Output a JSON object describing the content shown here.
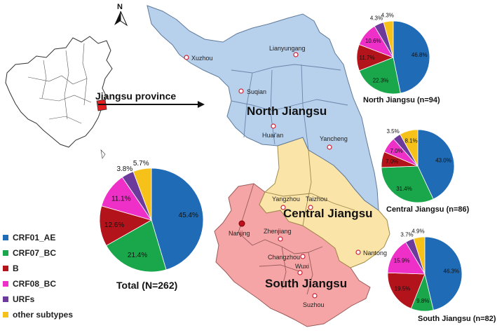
{
  "map": {
    "north_label": "N",
    "province_label": "Jiangsu province",
    "regions": [
      {
        "name": "North Jiangsu",
        "color": "#b7d0ec"
      },
      {
        "name": "Central Jiangsu",
        "color": "#fbe4a8"
      },
      {
        "name": "South Jiangsu",
        "color": "#f5a5a5"
      }
    ],
    "cities": [
      "Xuzhou",
      "Lianyungang",
      "Suqian",
      "Huai'an",
      "Yancheng",
      "Yangzhou",
      "Taizhou",
      "Nanjing",
      "Zhenjiang",
      "Nantong",
      "Changzhou",
      "Wuxi",
      "Suzhou"
    ]
  },
  "legend": {
    "items": [
      {
        "label": "CRF01_AE",
        "color": "#1f6bb5"
      },
      {
        "label": "CRF07_BC",
        "color": "#1aa64b"
      },
      {
        "label": "B",
        "color": "#b3141b"
      },
      {
        "label": "CRF08_BC",
        "color": "#ee2fc8"
      },
      {
        "label": "URFs",
        "color": "#6b3a9a"
      },
      {
        "label": "other subtypes",
        "color": "#f6c21a"
      }
    ]
  },
  "chart_data": [
    {
      "type": "pie",
      "title": "Total (N=262)",
      "labels": [
        "CRF01_AE",
        "CRF07_BC",
        "B",
        "CRF08_BC",
        "URFs",
        "other subtypes"
      ],
      "values": [
        45.4,
        21.4,
        12.6,
        11.1,
        3.8,
        5.7
      ],
      "value_labels": [
        "45.4%",
        "21.4%",
        "12.6%",
        "11.1%",
        "3.8%",
        "5.7%"
      ]
    },
    {
      "type": "pie",
      "title": "North Jiangsu (n=94)",
      "labels": [
        "CRF01_AE",
        "CRF07_BC",
        "B",
        "CRF08_BC",
        "URFs",
        "other subtypes"
      ],
      "values": [
        46.8,
        22.3,
        11.7,
        10.6,
        4.3,
        4.3
      ],
      "value_labels": [
        "46.8%",
        "22.3%",
        "11.7%",
        "10.6%",
        "4.3%",
        "4.3%"
      ]
    },
    {
      "type": "pie",
      "title": "Central Jiangsu (n=86)",
      "labels": [
        "CRF01_AE",
        "CRF07_BC",
        "B",
        "CRF08_BC",
        "URFs",
        "other subtypes"
      ],
      "values": [
        43.0,
        31.4,
        7.0,
        7.0,
        3.5,
        8.1
      ],
      "value_labels": [
        "43.0%",
        "31.4%",
        "7.0%",
        "7.0%",
        "3.5%",
        "8.1%"
      ]
    },
    {
      "type": "pie",
      "title": "South Jiangsu (n=82)",
      "labels": [
        "CRF01_AE",
        "CRF07_BC",
        "B",
        "CRF08_BC",
        "URFs",
        "other subtypes"
      ],
      "values": [
        46.3,
        9.8,
        19.5,
        15.9,
        3.7,
        4.9
      ],
      "value_labels": [
        "46.3%",
        "9.8%",
        "19.5%",
        "15.9%",
        "3.7%",
        "4.9%"
      ]
    }
  ]
}
